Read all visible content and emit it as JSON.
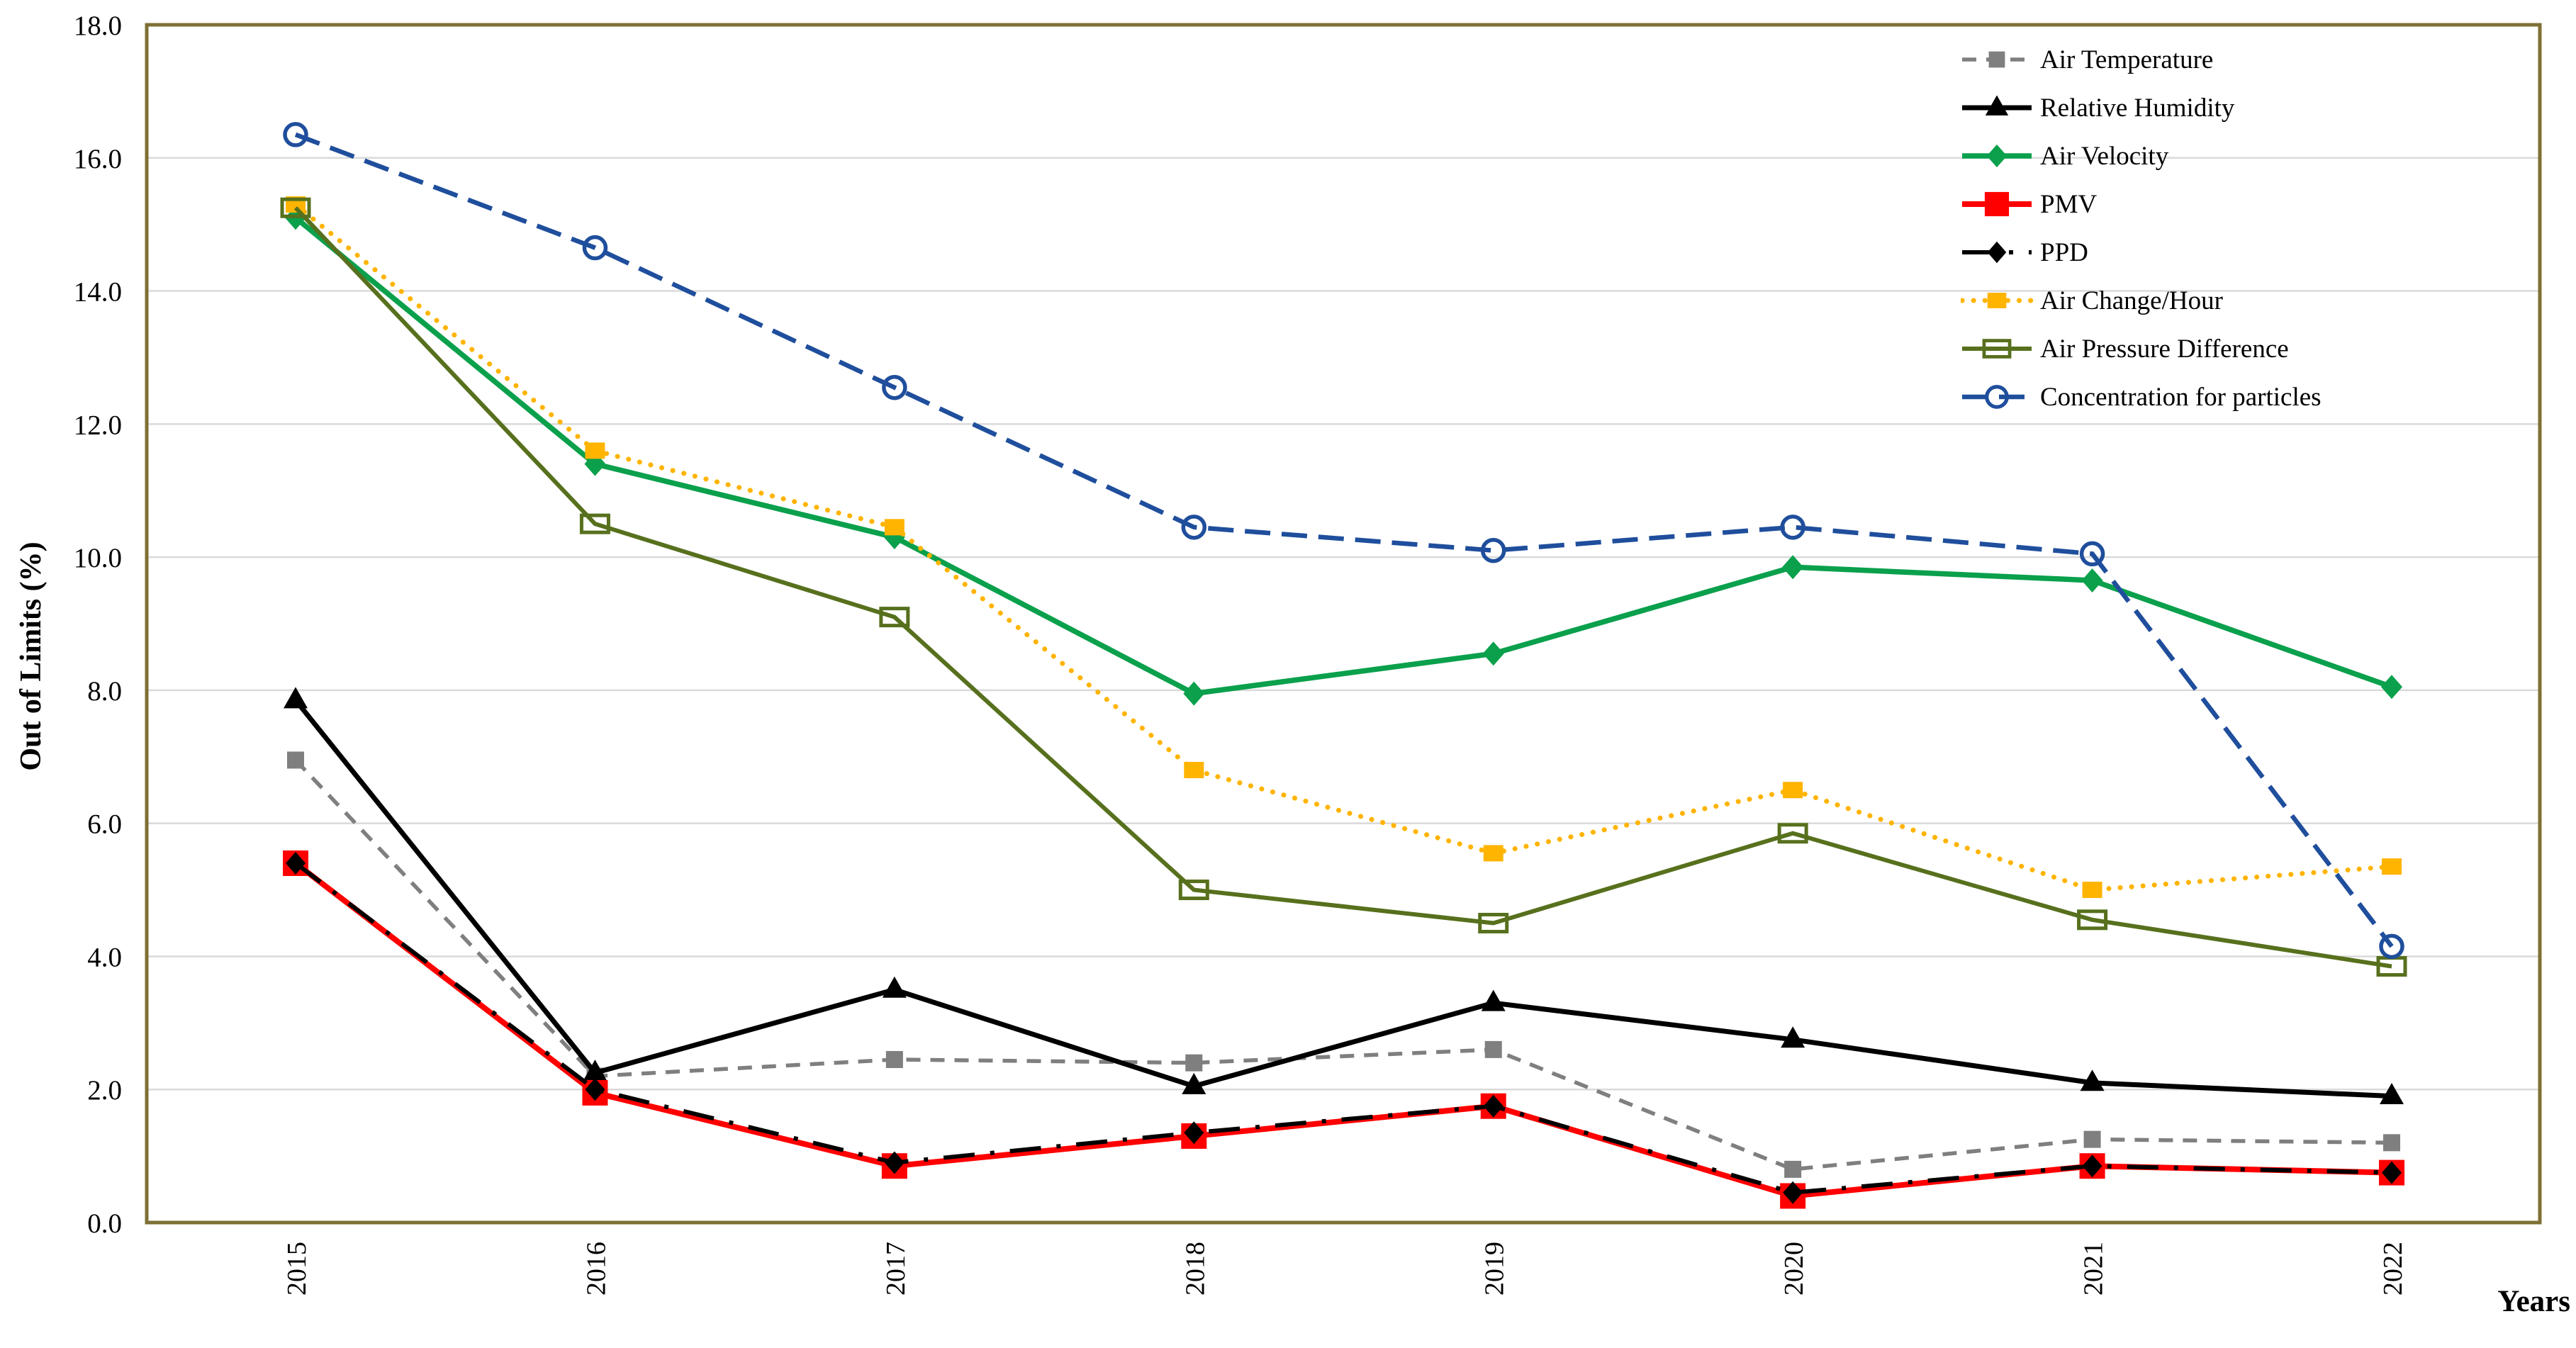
{
  "chart_data": {
    "type": "line",
    "title": "",
    "xlabel": "Years",
    "ylabel": "Out of Limits (%)",
    "x_categories": [
      "2015",
      "2016",
      "2017",
      "2018",
      "2019",
      "2020",
      "2021",
      "2022"
    ],
    "ylim": [
      0,
      18
    ],
    "ytick_step": 2,
    "ytick_labels": [
      "0.0",
      "2.0",
      "4.0",
      "6.0",
      "8.0",
      "10.0",
      "12.0",
      "14.0",
      "16.0",
      "18.0"
    ],
    "grid": "horizontal",
    "legend_position": "inside-top-right",
    "series": [
      {
        "name": "Air Temperature",
        "color": "#7F7F7F",
        "line_style": "dashed-short",
        "marker": "square",
        "values": [
          6.95,
          2.2,
          2.45,
          2.4,
          2.6,
          0.8,
          1.25,
          1.2
        ]
      },
      {
        "name": "Relative Humidity",
        "color": "#000000",
        "line_style": "solid",
        "marker": "triangle",
        "values": [
          7.85,
          2.25,
          3.5,
          2.05,
          3.3,
          2.75,
          2.1,
          1.9
        ]
      },
      {
        "name": "Air Velocity",
        "color": "#0AA04C",
        "line_style": "solid",
        "marker": "diamond",
        "values": [
          15.1,
          11.4,
          10.3,
          7.95,
          8.55,
          9.85,
          9.65,
          8.05
        ]
      },
      {
        "name": "PMV",
        "color": "#FF0000",
        "line_style": "solid",
        "marker": "square",
        "values": [
          5.4,
          1.95,
          0.85,
          1.3,
          1.75,
          0.4,
          0.85,
          0.75
        ]
      },
      {
        "name": "PPD",
        "color": "#000000",
        "line_style": "dash-dot",
        "marker": "diamond",
        "values": [
          5.4,
          2.0,
          0.9,
          1.35,
          1.75,
          0.45,
          0.85,
          0.75
        ]
      },
      {
        "name": "Air Change/Hour",
        "color": "#FFB400",
        "line_style": "dotted",
        "marker": "square",
        "values": [
          15.3,
          11.6,
          10.45,
          6.8,
          5.55,
          6.5,
          5.0,
          5.35
        ]
      },
      {
        "name": "Air Pressure Difference",
        "color": "#57701D",
        "line_style": "solid",
        "marker": "rect-open",
        "values": [
          15.25,
          10.5,
          9.1,
          5.0,
          4.5,
          5.85,
          4.55,
          3.85
        ]
      },
      {
        "name": "Concentration for particles",
        "color": "#1F4E9C",
        "line_style": "dashed",
        "marker": "circle-open",
        "values": [
          16.35,
          14.65,
          12.55,
          10.45,
          10.1,
          10.45,
          10.05,
          4.15
        ]
      }
    ]
  },
  "colors": {
    "frame_border": "#7E7034",
    "gridline": "#DADADA",
    "background": "#FFFFFF",
    "text": "#000000"
  }
}
